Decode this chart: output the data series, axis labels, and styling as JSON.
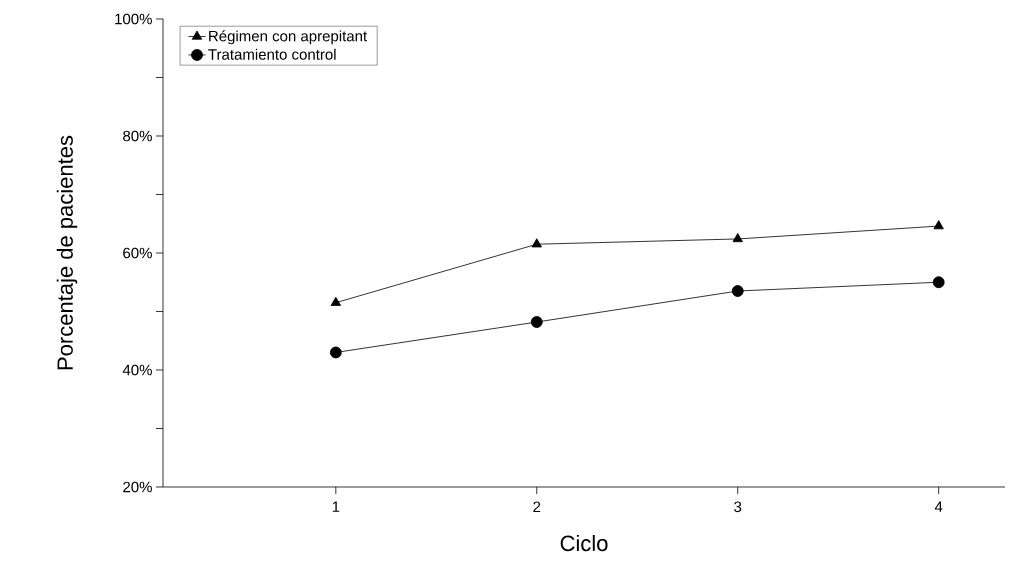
{
  "chart_data": {
    "type": "line",
    "xlabel": "Ciclo",
    "ylabel": "Porcentaje de pacientes",
    "x": [
      1,
      2,
      3,
      4
    ],
    "series": [
      {
        "name": "Régimen con aprepitant",
        "color": "#000000",
        "marker": "triangle",
        "values": [
          51.5,
          61.5,
          62.4,
          64.6
        ]
      },
      {
        "name": "Tratamiento control",
        "color": "#000000",
        "marker": "circle",
        "values": [
          43,
          48.2,
          53.5,
          55
        ]
      }
    ],
    "xlim": [
      0.14,
      4.33
    ],
    "xticks": [
      1,
      2,
      3,
      4
    ],
    "ylim": [
      20,
      100
    ],
    "yticks": [
      {
        "value": 20,
        "label": "20%"
      },
      {
        "value": 30,
        "label": null
      },
      {
        "value": 40,
        "label": "40%"
      },
      {
        "value": 50,
        "label": null
      },
      {
        "value": 60,
        "label": "60%"
      },
      {
        "value": 70,
        "label": null
      },
      {
        "value": 80,
        "label": "80%"
      },
      {
        "value": 90,
        "label": null
      },
      {
        "value": 100,
        "label": "100%"
      }
    ],
    "legend": "top left",
    "grid": false,
    "line_style": "solid"
  }
}
